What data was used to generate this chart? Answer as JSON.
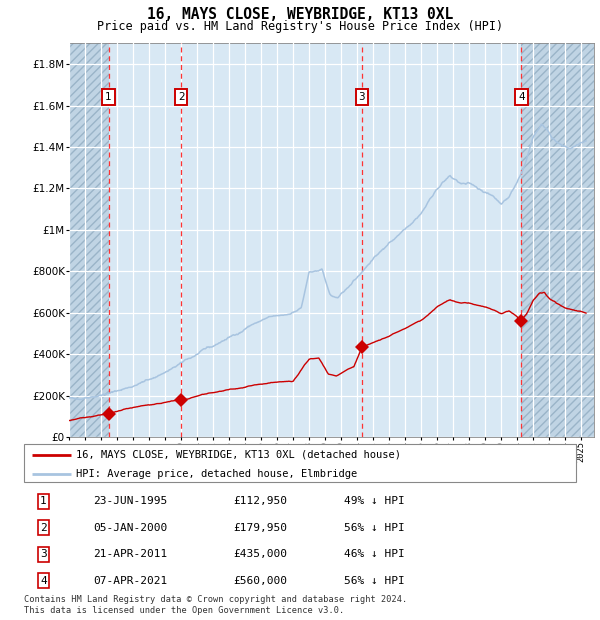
{
  "title": "16, MAYS CLOSE, WEYBRIDGE, KT13 0XL",
  "subtitle": "Price paid vs. HM Land Registry's House Price Index (HPI)",
  "ytick_values": [
    0,
    200000,
    400000,
    600000,
    800000,
    1000000,
    1200000,
    1400000,
    1600000,
    1800000
  ],
  "ylim": [
    0,
    1900000
  ],
  "xlim_start": 1993.0,
  "xlim_end": 2025.8,
  "purchases": [
    {
      "num": 1,
      "date": "23-JUN-1995",
      "year": 1995.47,
      "price": 112950,
      "pct": "49%"
    },
    {
      "num": 2,
      "date": "05-JAN-2000",
      "year": 2000.01,
      "price": 179950,
      "pct": "56%"
    },
    {
      "num": 3,
      "date": "21-APR-2011",
      "year": 2011.3,
      "price": 435000,
      "pct": "46%"
    },
    {
      "num": 4,
      "date": "07-APR-2021",
      "year": 2021.26,
      "price": 560000,
      "pct": "56%"
    }
  ],
  "legend_line1": "16, MAYS CLOSE, WEYBRIDGE, KT13 0XL (detached house)",
  "legend_line2": "HPI: Average price, detached house, Elmbridge",
  "footer_line1": "Contains HM Land Registry data © Crown copyright and database right 2024.",
  "footer_line2": "This data is licensed under the Open Government Licence v3.0.",
  "hpi_color": "#a8c4e0",
  "price_color": "#cc0000",
  "bg_color": "#d8e8f4",
  "grid_color": "#ffffff",
  "dashed_line_color": "#ff3333",
  "box_color": "#cc0000",
  "row_data": [
    [
      1,
      "23-JUN-1995",
      "£112,950",
      "49% ↓ HPI"
    ],
    [
      2,
      "05-JAN-2000",
      "£179,950",
      "56% ↓ HPI"
    ],
    [
      3,
      "21-APR-2011",
      "£435,000",
      "46% ↓ HPI"
    ],
    [
      4,
      "07-APR-2021",
      "£560,000",
      "56% ↓ HPI"
    ]
  ],
  "hpi_anchors_x": [
    1993.0,
    1994.0,
    1995.5,
    1996.5,
    1997.5,
    1998.5,
    1999.5,
    2000.5,
    2001.5,
    2002.5,
    2003.5,
    2004.5,
    2005.5,
    2006.5,
    2007.5,
    2008.0,
    2008.8,
    2009.3,
    2009.8,
    2010.3,
    2010.8,
    2011.3,
    2012.0,
    2013.0,
    2014.0,
    2015.0,
    2016.0,
    2016.8,
    2017.5,
    2018.0,
    2018.8,
    2019.5,
    2020.0,
    2020.5,
    2021.0,
    2021.5,
    2022.0,
    2022.5,
    2022.8,
    2023.3,
    2023.8,
    2024.3,
    2025.0,
    2025.3
  ],
  "hpi_anchors_y": [
    185000,
    192000,
    210000,
    235000,
    260000,
    295000,
    330000,
    380000,
    420000,
    460000,
    500000,
    545000,
    575000,
    590000,
    620000,
    790000,
    810000,
    690000,
    665000,
    710000,
    760000,
    800000,
    860000,
    935000,
    1010000,
    1080000,
    1200000,
    1260000,
    1220000,
    1220000,
    1195000,
    1160000,
    1130000,
    1160000,
    1230000,
    1320000,
    1450000,
    1510000,
    1490000,
    1440000,
    1400000,
    1390000,
    1420000,
    1430000
  ],
  "price_anchors_x": [
    1993.0,
    1994.5,
    1995.47,
    1996.5,
    1997.5,
    1998.5,
    1999.5,
    2000.01,
    2001.0,
    2002.0,
    2003.0,
    2004.0,
    2005.0,
    2006.0,
    2007.0,
    2008.0,
    2008.6,
    2009.2,
    2009.7,
    2010.2,
    2010.8,
    2011.3,
    2012.0,
    2013.0,
    2014.0,
    2015.0,
    2016.0,
    2016.8,
    2017.5,
    2018.0,
    2018.8,
    2019.5,
    2020.0,
    2020.5,
    2021.26,
    2021.6,
    2022.0,
    2022.4,
    2022.7,
    2023.0,
    2023.5,
    2024.0,
    2024.5,
    2025.0,
    2025.3
  ],
  "price_anchors_y": [
    80000,
    100000,
    112950,
    130000,
    148000,
    162000,
    172000,
    179950,
    196000,
    213000,
    228000,
    242000,
    255000,
    262000,
    270000,
    375000,
    385000,
    305000,
    295000,
    315000,
    340000,
    435000,
    455000,
    487000,
    525000,
    565000,
    630000,
    660000,
    645000,
    645000,
    630000,
    612000,
    595000,
    610000,
    560000,
    595000,
    658000,
    695000,
    700000,
    670000,
    645000,
    625000,
    615000,
    608000,
    600000
  ]
}
